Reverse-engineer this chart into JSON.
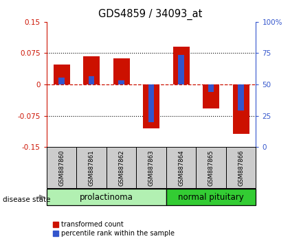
{
  "title": "GDS4859 / 34093_at",
  "samples": [
    "GSM887860",
    "GSM887861",
    "GSM887862",
    "GSM887863",
    "GSM887864",
    "GSM887865",
    "GSM887866"
  ],
  "transformed_count": [
    0.048,
    0.068,
    0.062,
    -0.105,
    0.09,
    -0.058,
    -0.118
  ],
  "percentile_rank_values": [
    55.5,
    56.5,
    53.5,
    20.0,
    73.5,
    44.0,
    29.0
  ],
  "ylim_left": [
    -0.15,
    0.15
  ],
  "ylim_right": [
    0,
    100
  ],
  "yticks_left": [
    -0.15,
    -0.075,
    0,
    0.075,
    0.15
  ],
  "yticks_right": [
    0,
    25,
    50,
    75,
    100
  ],
  "group_sizes": [
    4,
    3
  ],
  "group_labels": [
    "prolactinoma",
    "normal pituitary"
  ],
  "group_colors": [
    "#b2f0b2",
    "#33cc33"
  ],
  "red_color": "#cc1100",
  "blue_color": "#3355cc",
  "left_axis_color": "#cc1100",
  "right_axis_color": "#3355cc",
  "bg_sample_box": "#cccccc",
  "legend_items": [
    "transformed count",
    "percentile rank within the sample"
  ],
  "zero_line_color": "#cc1100"
}
